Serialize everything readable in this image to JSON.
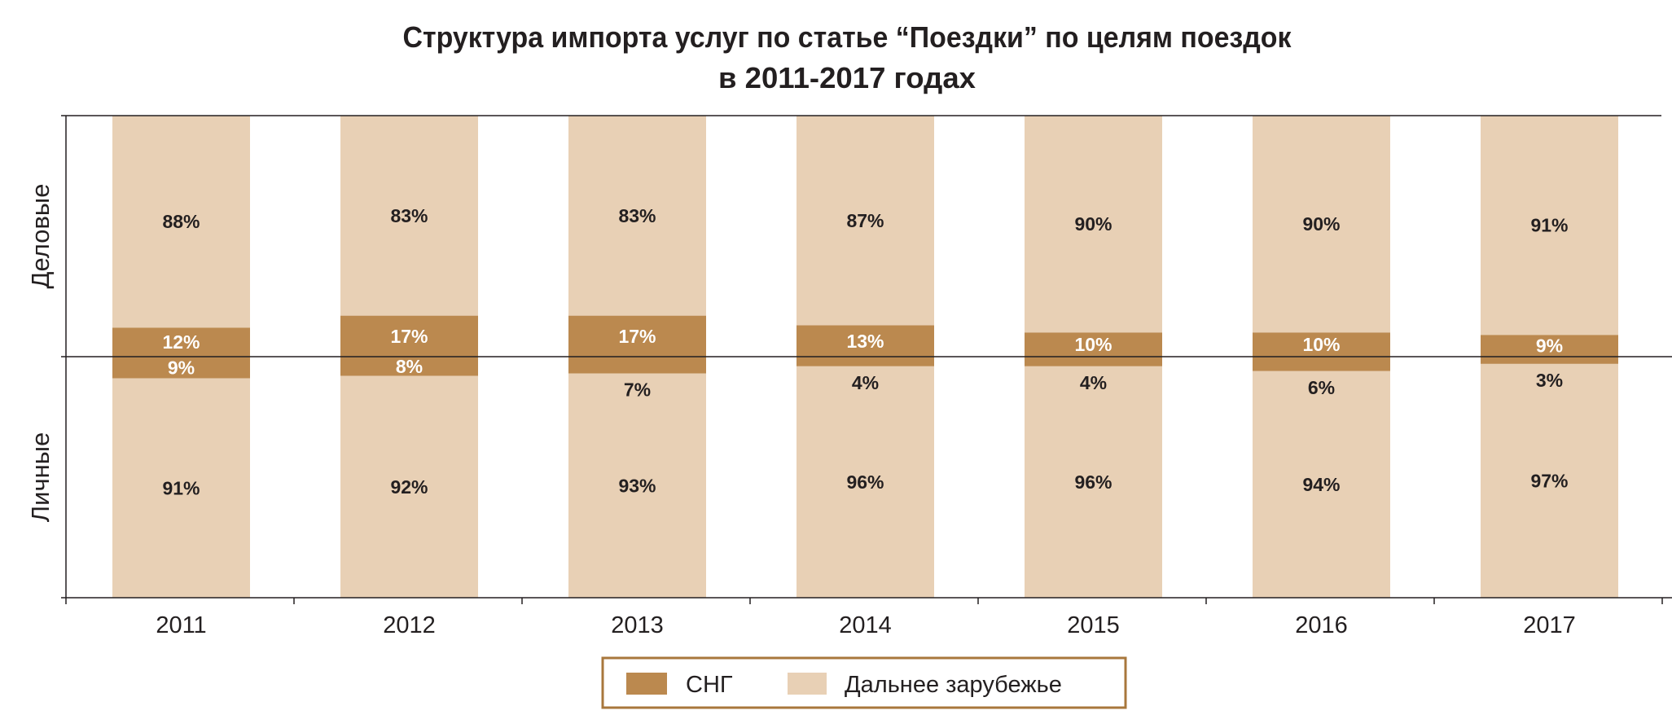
{
  "chart_data": {
    "type": "bar",
    "stacked": true,
    "title_lines": [
      "Структура импорта услуг по статье “Поездки” по целям поездок",
      "в 2011-2017 годах"
    ],
    "categories": [
      "2011",
      "2012",
      "2013",
      "2014",
      "2015",
      "2016",
      "2017"
    ],
    "groups": [
      {
        "name": "Деловые",
        "position": "upper",
        "series": [
          {
            "name": "СНГ",
            "values": [
              12,
              17,
              17,
              13,
              10,
              10,
              9
            ]
          },
          {
            "name": "Дальнее зарубежье",
            "values": [
              88,
              83,
              83,
              87,
              90,
              90,
              91
            ]
          }
        ]
      },
      {
        "name": "Личные",
        "position": "lower",
        "series": [
          {
            "name": "СНГ",
            "values": [
              9,
              8,
              7,
              4,
              4,
              6,
              3
            ]
          },
          {
            "name": "Дальнее зарубежье",
            "values": [
              91,
              92,
              93,
              96,
              96,
              94,
              97
            ]
          }
        ]
      }
    ],
    "unit": "%",
    "ylim": [
      0,
      100
    ],
    "grid": false,
    "legend": {
      "placement": "bottom",
      "entries": [
        "СНГ",
        "Дальнее зарубежье"
      ]
    },
    "colors": {
      "СНГ": "#bb894f",
      "Дальнее зарубежье": "#e8d0b5",
      "legend_border": "#a8773c",
      "axis": "#231f20"
    }
  }
}
